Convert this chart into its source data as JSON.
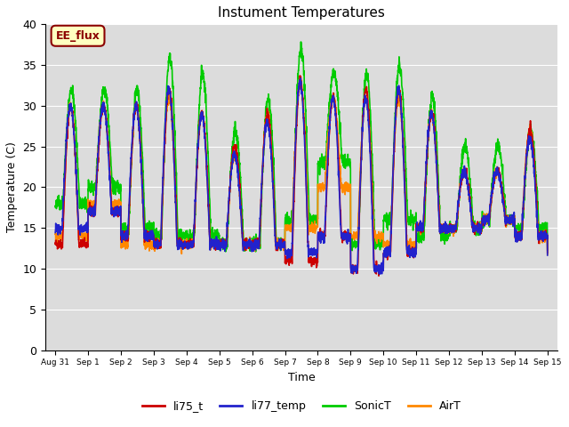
{
  "title": "Instument Temperatures",
  "xlabel": "Time",
  "ylabel": "Temperature (C)",
  "ylim": [
    0,
    40
  ],
  "bg_color": "#dcdcdc",
  "bg_color_lower": "#e8e8e8",
  "annotation_text": "EE_flux",
  "annotation_bg": "#ffffc0",
  "annotation_edge": "#8b0000",
  "legend": [
    "li75_t",
    "li77_temp",
    "SonicT",
    "AirT"
  ],
  "line_colors": [
    "#cc0000",
    "#2222cc",
    "#00cc00",
    "#ff8800"
  ],
  "x_tick_labels": [
    "Aug 31",
    "Sep 1",
    "Sep 2",
    "Sep 3",
    "Sep 4",
    "Sep 5",
    "Sep 6",
    "Sep 7",
    "Sep 8",
    "Sep 9",
    "Sep 10",
    "Sep 11",
    "Sep 12",
    "Sep 13",
    "Sep 14",
    "Sep 15"
  ],
  "x_tick_positions": [
    0,
    1,
    2,
    3,
    4,
    5,
    6,
    7,
    8,
    9,
    10,
    11,
    12,
    13,
    14,
    15
  ],
  "li75_peaks": [
    30,
    30,
    30,
    32,
    29,
    25,
    29,
    33,
    31,
    32,
    32,
    29,
    22,
    22,
    27,
    13
  ],
  "li75_troughs": [
    13,
    17,
    14,
    13,
    13,
    13,
    13,
    11,
    14,
    10,
    12,
    15,
    15,
    16,
    14,
    12
  ],
  "li77_peaks": [
    30,
    30,
    30,
    32,
    29,
    24,
    28,
    33,
    31,
    31,
    32,
    29,
    22,
    22,
    26,
    13
  ],
  "li77_troughs": [
    15,
    17,
    14,
    13,
    13,
    13,
    13,
    12,
    14,
    10,
    12,
    15,
    15,
    16,
    14,
    12
  ],
  "sonic_peaks": [
    32,
    32,
    32,
    36,
    34,
    27,
    31,
    37,
    34,
    34,
    35,
    31,
    25,
    25,
    27,
    13
  ],
  "sonic_troughs": [
    18,
    20,
    15,
    14,
    14,
    13,
    13,
    16,
    23,
    13,
    16,
    14,
    15,
    16,
    15,
    12
  ],
  "air_peaks": [
    30,
    30,
    30,
    31,
    29,
    24,
    29,
    33,
    31,
    31,
    31,
    29,
    22,
    22,
    27,
    13
  ],
  "air_troughs": [
    14,
    18,
    13,
    13,
    13,
    13,
    13,
    15,
    20,
    14,
    13,
    15,
    15,
    16,
    14,
    12
  ],
  "seed": 42,
  "n_points": 3000
}
